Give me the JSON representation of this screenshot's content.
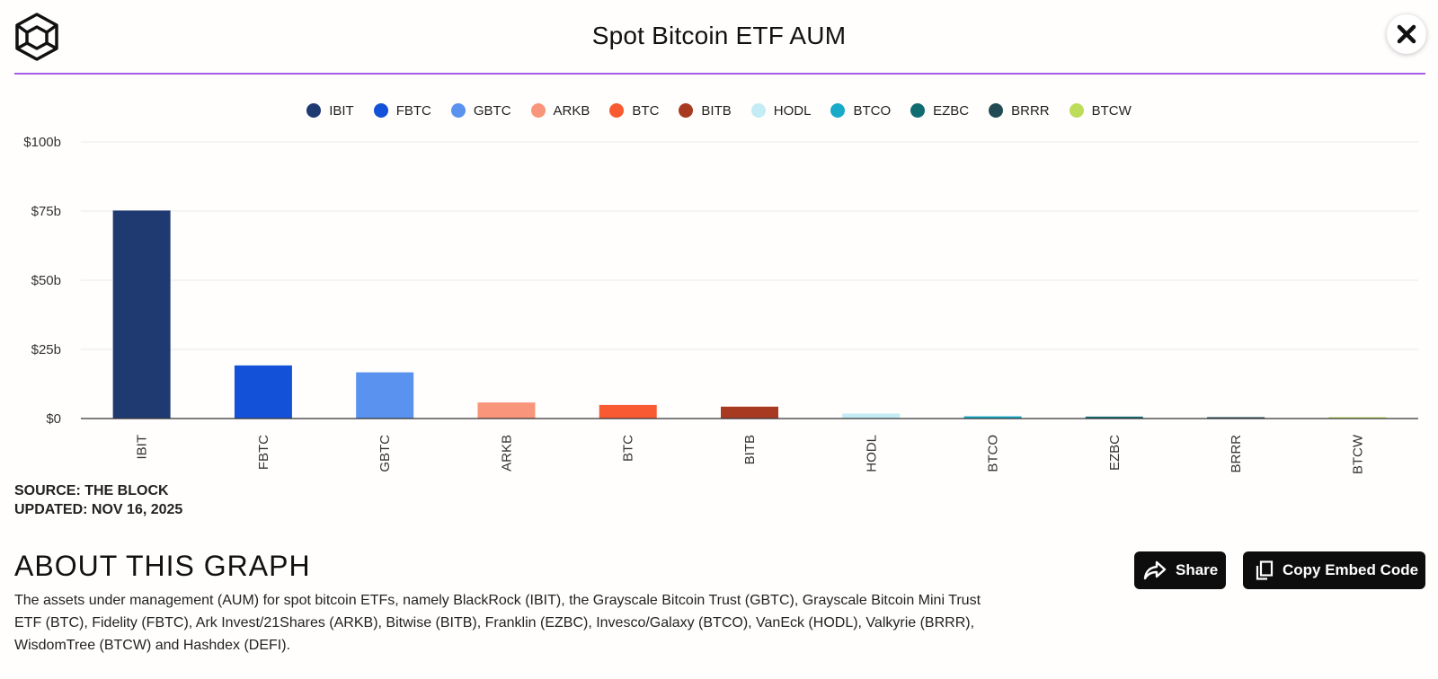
{
  "header": {
    "title": "Spot Bitcoin ETF AUM",
    "close_label": "✕"
  },
  "colors": {
    "accent_rule": "#a45ee5",
    "button_bg": "#0d0d0d"
  },
  "chart_data": {
    "type": "bar",
    "title": "Spot Bitcoin ETF AUM",
    "xlabel": "",
    "ylabel": "",
    "ylim": [
      0,
      100
    ],
    "unit": "billion USD",
    "yticks": [
      0,
      25,
      50,
      75,
      100
    ],
    "ytick_labels": [
      "$0",
      "$25b",
      "$50b",
      "$75b",
      "$100b"
    ],
    "categories": [
      "IBIT",
      "FBTC",
      "GBTC",
      "ARKB",
      "BTC",
      "BITB",
      "HODL",
      "BTCO",
      "EZBC",
      "BRRR",
      "BTCW"
    ],
    "values": [
      75.2,
      19.2,
      16.7,
      5.8,
      4.9,
      4.3,
      1.8,
      0.8,
      0.7,
      0.5,
      0.3
    ],
    "colors": [
      "#1e3a70",
      "#1352d8",
      "#5992ef",
      "#f8957a",
      "#f95a31",
      "#a83a22",
      "#c3ecf5",
      "#18aac8",
      "#116c72",
      "#234b53",
      "#bcdc5a"
    ],
    "legend": [
      "IBIT",
      "FBTC",
      "GBTC",
      "ARKB",
      "BTC",
      "BITB",
      "HODL",
      "BTCO",
      "EZBC",
      "BRRR",
      "BTCW"
    ],
    "legend_position": "top-center",
    "grid": true
  },
  "source": {
    "source_text": "SOURCE: THE BLOCK",
    "updated_text": "UPDATED: NOV 16, 2025"
  },
  "about": {
    "heading": "ABOUT THIS GRAPH",
    "text": "The assets under management (AUM) for spot bitcoin ETFs, namely BlackRock (IBIT), the Grayscale Bitcoin Trust (GBTC), Grayscale Bitcoin Mini Trust ETF (BTC), Fidelity (FBTC), Ark Invest/21Shares (ARKB), Bitwise (BITB), Franklin (EZBC), Invesco/Galaxy (BTCO), VanEck (HODL), Valkyrie (BRRR), WisdomTree (BTCW) and Hashdex (DEFI)."
  },
  "actions": {
    "share_label": "Share",
    "embed_label": "Copy Embed Code"
  }
}
